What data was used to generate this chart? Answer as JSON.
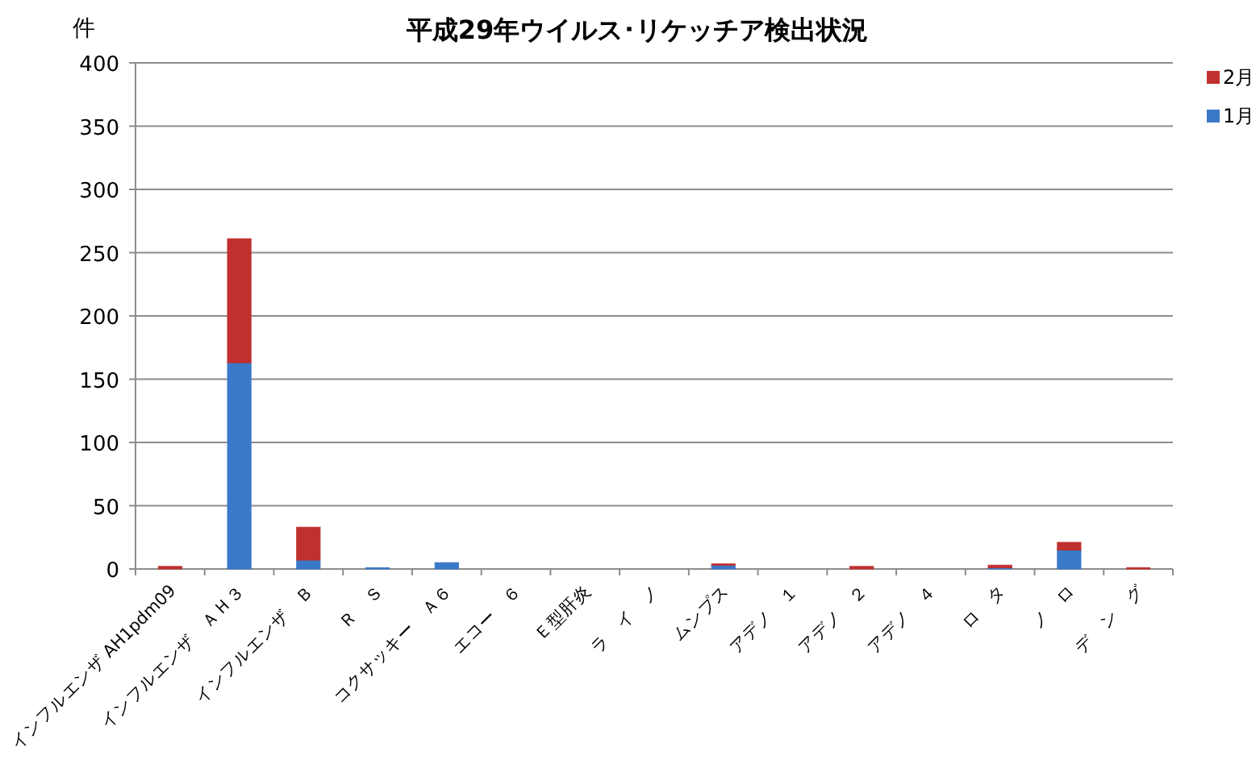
{
  "chart_data": {
    "type": "bar",
    "title": "平成29年ウイルス･リケッチア検出状況",
    "ylabel": "件",
    "categories": [
      "インフルエンザ AH1pdm09",
      "インフルエンザ　ＡＨ３",
      "インフルエンザ　Ｂ",
      "Ｒ　Ｓ",
      "コクサッキー　Ａ６",
      "エコー　６",
      "Ｅ型肝炎",
      "ラ　イ　ノ",
      "ムンプス",
      "アデノ　１",
      "アデノ　２",
      "アデノ　４",
      "ロ　タ",
      "ノ　ロ",
      "デ　ン　グ"
    ],
    "series": [
      {
        "name": "1月",
        "color": "#3a78c8",
        "values": [
          0,
          163,
          7,
          1,
          5,
          0,
          0,
          0,
          3,
          0,
          0,
          0,
          1,
          15,
          0
        ]
      },
      {
        "name": "2月",
        "color": "#c0302e",
        "values": [
          2,
          98,
          26,
          0,
          0,
          0,
          0,
          0,
          1,
          0,
          2,
          0,
          2,
          6,
          1
        ]
      }
    ],
    "stacked": true,
    "ylim": [
      0,
      400
    ],
    "yticks": [
      0,
      50,
      100,
      150,
      200,
      250,
      300,
      350,
      400
    ],
    "grid": "y",
    "legend": "right"
  }
}
